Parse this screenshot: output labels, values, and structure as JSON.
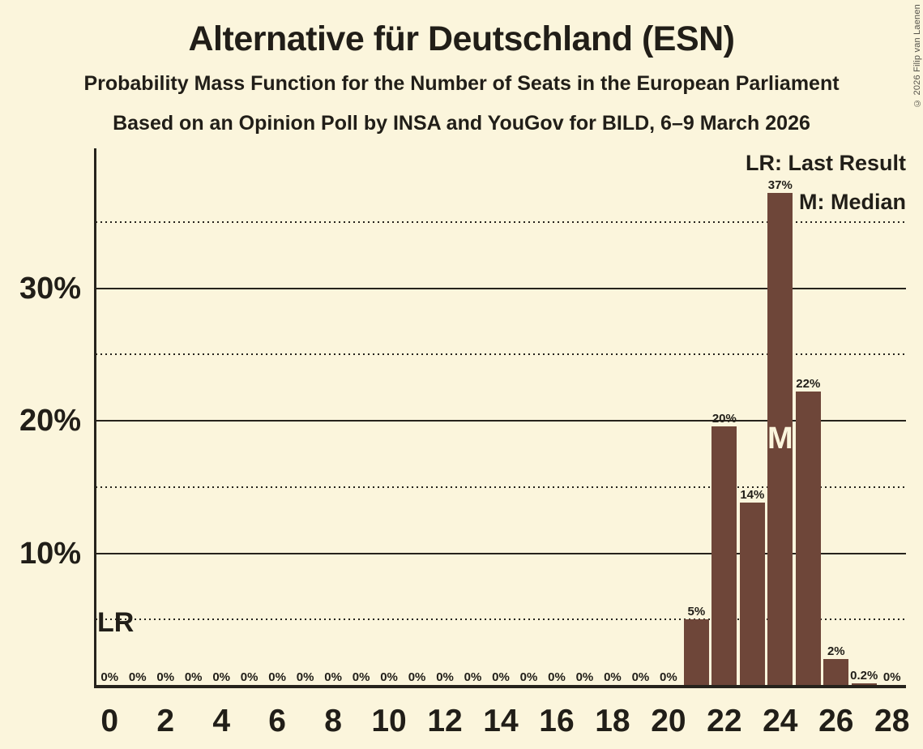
{
  "header": {
    "title": "Alternative für Deutschland (ESN)",
    "subtitle1": "Probability Mass Function for the Number of Seats in the European Parliament",
    "subtitle2": "Based on an Opinion Poll by INSA and YouGov for BILD, 6–9 March 2026",
    "copyright": "© 2026 Filip van Laenen"
  },
  "legend": {
    "lr": "LR: Last Result",
    "m": "M: Median",
    "position": "top-right"
  },
  "annotations": {
    "lr_marker": "LR",
    "median_marker": "M",
    "median_seat": 24
  },
  "chart_data": {
    "type": "bar",
    "title": "Alternative für Deutschland (ESN)",
    "xlabel": "",
    "ylabel": "",
    "x": [
      0,
      1,
      2,
      3,
      4,
      5,
      6,
      7,
      8,
      9,
      10,
      11,
      12,
      13,
      14,
      15,
      16,
      17,
      18,
      19,
      20,
      21,
      22,
      23,
      24,
      25,
      26,
      27,
      28
    ],
    "values": [
      0,
      0,
      0,
      0,
      0,
      0,
      0,
      0,
      0,
      0,
      0,
      0,
      0,
      0,
      0,
      0,
      0,
      0,
      0,
      0,
      0,
      5,
      19.6,
      13.8,
      37.2,
      22.2,
      2,
      0.2,
      0
    ],
    "labels": [
      "0%",
      "0%",
      "0%",
      "0%",
      "0%",
      "0%",
      "0%",
      "0%",
      "0%",
      "0%",
      "0%",
      "0%",
      "0%",
      "0%",
      "0%",
      "0%",
      "0%",
      "0%",
      "0%",
      "0%",
      "0%",
      "5%",
      "20%",
      "14%",
      "37%",
      "22%",
      "2%",
      "0.2%",
      "0%"
    ],
    "median_seat": 24,
    "ylim": [
      0,
      40
    ],
    "grid": true,
    "y_axis": {
      "major_ticks": [
        {
          "value": 10,
          "label": "10%"
        },
        {
          "value": 20,
          "label": "20%"
        },
        {
          "value": 30,
          "label": "30%"
        }
      ],
      "minor_ticks": [
        5,
        15,
        25,
        35
      ]
    },
    "x_axis": {
      "tick_step": 2,
      "tick_labels": [
        "0",
        "2",
        "4",
        "6",
        "8",
        "10",
        "12",
        "14",
        "16",
        "18",
        "20",
        "22",
        "24",
        "26",
        "28"
      ]
    },
    "colors": {
      "background": "#FBF5DC",
      "bar": "#6E4639",
      "text": "#211E18",
      "grid": "#26231C",
      "median_label": "#FBF5DC",
      "copyright": "#55524A"
    }
  }
}
